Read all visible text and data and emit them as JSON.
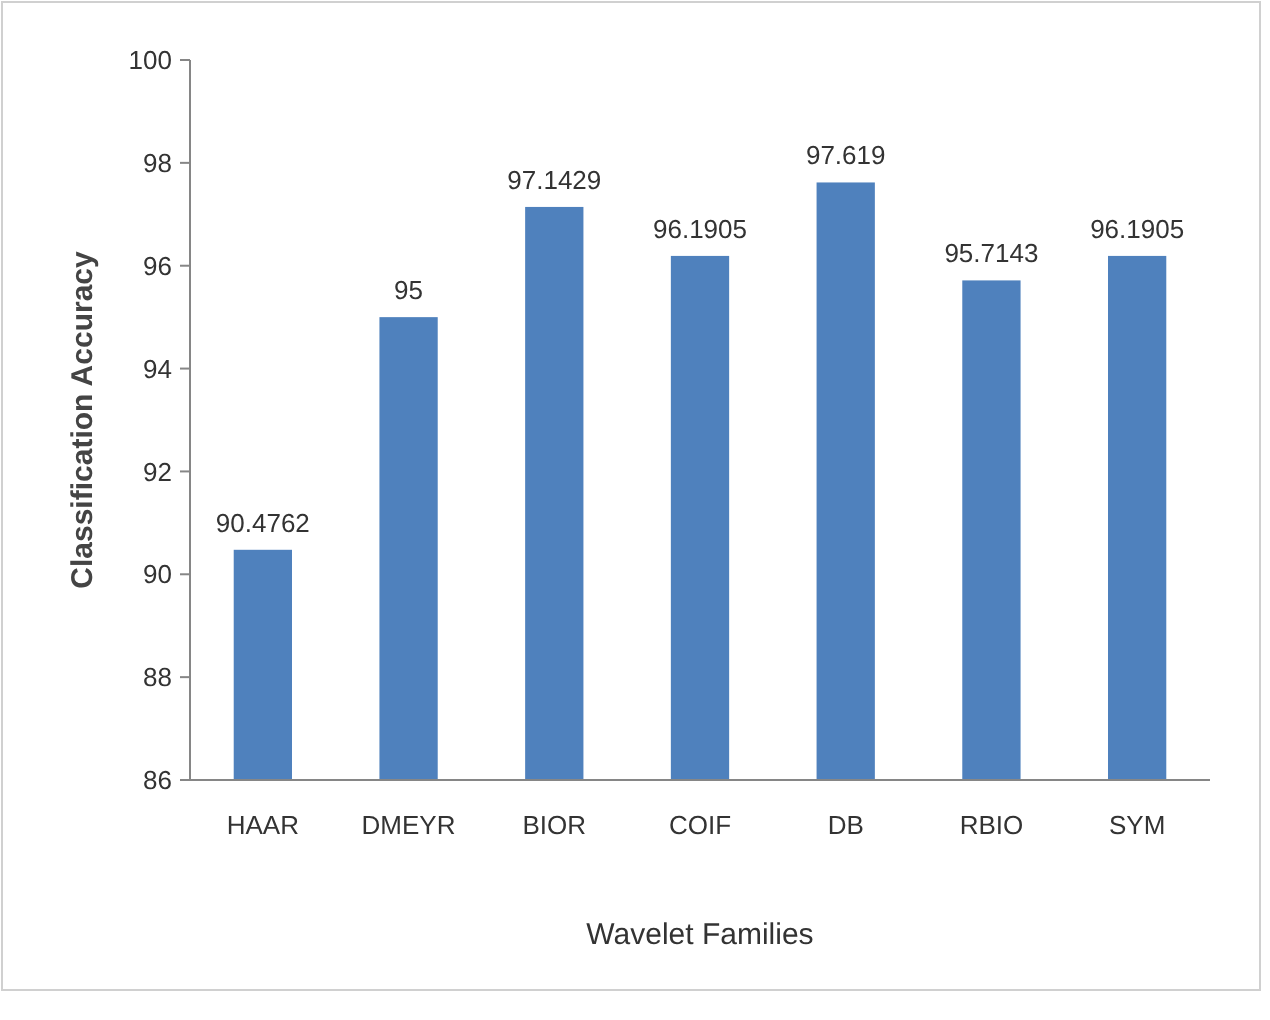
{
  "chart_data": {
    "type": "bar",
    "xlabel": "Wavelet Families",
    "ylabel": "Classification Accuracy",
    "categories": [
      "HAAR",
      "DMEYR",
      "BIOR",
      "COIF",
      "DB",
      "RBIO",
      "SYM"
    ],
    "values": [
      90.4762,
      95,
      97.1429,
      96.1905,
      97.619,
      95.7143,
      96.1905
    ],
    "color": "#4f81bd",
    "ylim": [
      86,
      100
    ],
    "yticks": [
      86,
      88,
      90,
      92,
      94,
      96,
      98,
      100
    ],
    "data_labels": true
  }
}
